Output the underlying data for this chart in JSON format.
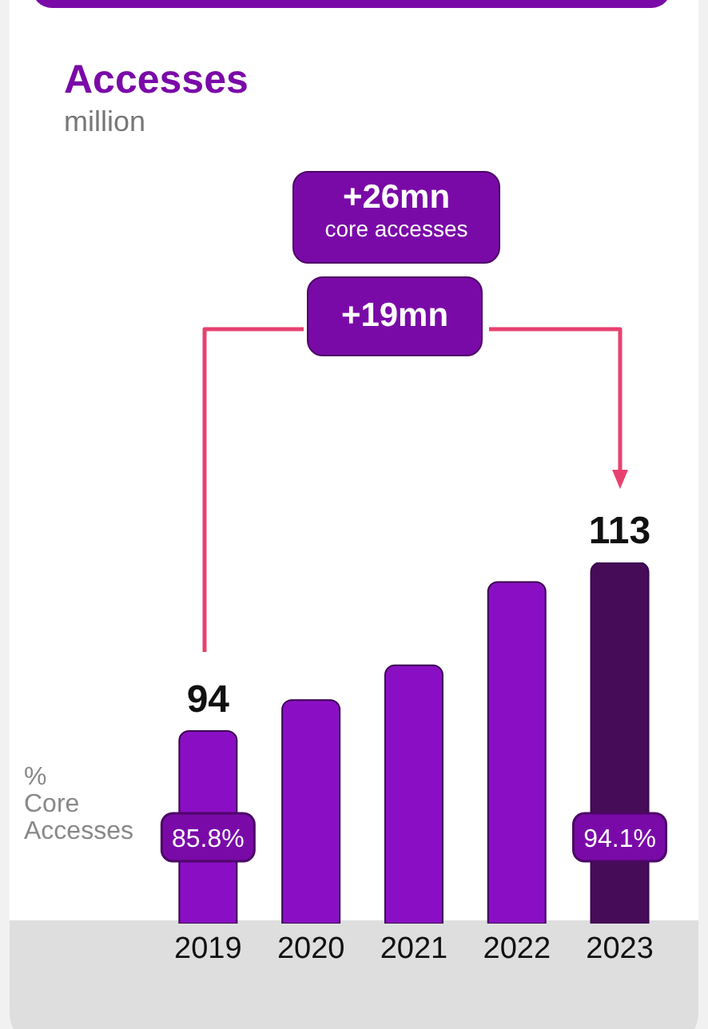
{
  "chart_data": {
    "type": "bar",
    "title": "Accesses",
    "subtitle": "million",
    "categories": [
      "2019",
      "2020",
      "2021",
      "2022",
      "2023"
    ],
    "values": [
      94,
      97.5,
      101.4,
      110.8,
      113
    ],
    "colors": [
      "#8a0fc4",
      "#8a0fc4",
      "#8a0fc4",
      "#8a0fc4",
      "#460c58"
    ],
    "value_labels": [
      "94",
      null,
      null,
      null,
      "113"
    ],
    "ylim": [
      72.3,
      113
    ],
    "tick_labels": "x",
    "grid": false,
    "annotations": [
      {
        "text": "+26mn"
      },
      {
        "text": "core accesses"
      },
      {
        "text": "+19mn"
      },
      {
        "text": "% Core Accesses"
      },
      "85.8%",
      "94.1%"
    ]
  }
}
